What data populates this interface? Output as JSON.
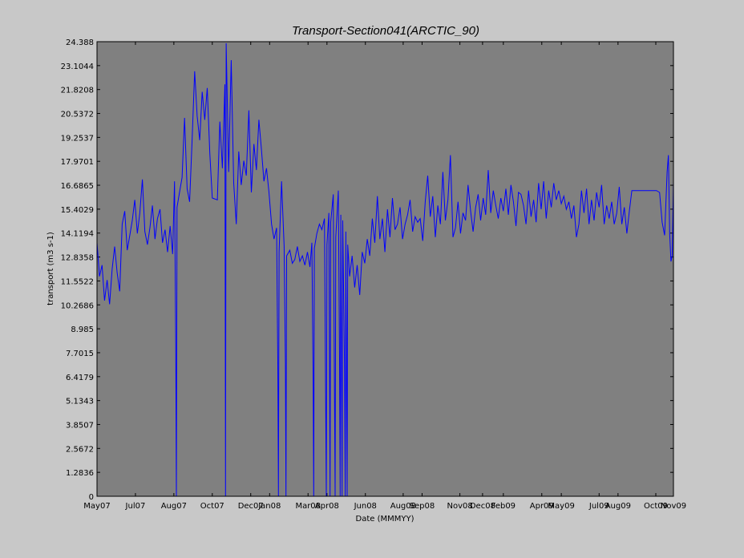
{
  "chart_data": {
    "type": "line",
    "title": "Transport-Section041(ARCTIC_90)",
    "xlabel": "Date (MMMYY)",
    "ylabel": "transport (m3 s-1)",
    "x_range": [
      "2007-05-01",
      "2009-11-01"
    ],
    "ylim": [
      0,
      24.388
    ],
    "y_ticks": [
      0,
      1.2836,
      2.5672,
      3.8507,
      5.1343,
      6.4179,
      7.7015,
      8.985,
      10.2686,
      11.5522,
      12.8358,
      14.1194,
      15.4029,
      16.6865,
      17.9701,
      19.2537,
      20.5372,
      21.8208,
      23.1044,
      24.388
    ],
    "y_tick_labels": [
      "0",
      "1.2836",
      "2.5672",
      "3.8507",
      "5.1343",
      "6.4179",
      "7.7015",
      "8.985",
      "10.2686",
      "11.5522",
      "12.8358",
      "14.1194",
      "15.4029",
      "16.6865",
      "17.9701",
      "19.2537",
      "20.5372",
      "21.8208",
      "23.1044",
      "24.388"
    ],
    "x_ticks": [
      "2007-05-01",
      "2007-07-01",
      "2007-08-31",
      "2007-10-31",
      "2007-12-31",
      "2008-03-01",
      "2008-05-01",
      "2008-07-01",
      "2008-08-31",
      "2008-10-31",
      "2008-12-31",
      "2009-03-02",
      "2009-05-02",
      "2009-07-02",
      "2009-09-01",
      "2009-11-01"
    ],
    "x_tick_labels": [
      "May07",
      "Jul07",
      "Aug07",
      "Oct07",
      "Dec07",
      "Jan08",
      "Mar08",
      "Apr08",
      "Jun08",
      "Aug08",
      "Sep08",
      "Nov08",
      "Dec08",
      "Feb09",
      "Apr09",
      "May09",
      "Jul09",
      "Aug09",
      "Oct09",
      "Nov09"
    ],
    "x_tick_dates": [
      "2007-05-01",
      "2007-07-01",
      "2007-08-31",
      "2007-10-31",
      "2007-12-31",
      "2008-01-30",
      "2008-03-31",
      "2008-04-30",
      "2008-06-30",
      "2008-08-29",
      "2008-09-28",
      "2008-11-27",
      "2009-01-02",
      "2009-02-04",
      "2009-04-06",
      "2009-05-07",
      "2009-07-06",
      "2009-08-05",
      "2009-10-04",
      "2009-11-01"
    ],
    "grid": false,
    "legend": "none",
    "colors": {
      "line": "#0000ff",
      "plot_background": "#808080",
      "figure_background": "#c8c8c8"
    },
    "series": [
      {
        "points": [
          [
            "2007-05-01",
            13.6
          ],
          [
            "2007-05-05",
            11.8
          ],
          [
            "2007-05-09",
            12.4
          ],
          [
            "2007-05-13",
            10.5
          ],
          [
            "2007-05-17",
            11.6
          ],
          [
            "2007-05-21",
            10.3
          ],
          [
            "2007-05-25",
            12.2
          ],
          [
            "2007-05-29",
            13.4
          ],
          [
            "2007-06-02",
            12.0
          ],
          [
            "2007-06-06",
            11.0
          ],
          [
            "2007-06-10",
            14.6
          ],
          [
            "2007-06-14",
            15.3
          ],
          [
            "2007-06-18",
            13.2
          ],
          [
            "2007-06-22",
            14.0
          ],
          [
            "2007-06-26",
            14.8
          ],
          [
            "2007-06-30",
            15.9
          ],
          [
            "2007-07-04",
            14.1
          ],
          [
            "2007-07-08",
            15.2
          ],
          [
            "2007-07-12",
            17.0
          ],
          [
            "2007-07-16",
            14.2
          ],
          [
            "2007-07-20",
            13.5
          ],
          [
            "2007-07-24",
            14.4
          ],
          [
            "2007-07-28",
            15.6
          ],
          [
            "2007-08-01",
            13.8
          ],
          [
            "2007-08-05",
            14.9
          ],
          [
            "2007-08-09",
            15.4
          ],
          [
            "2007-08-13",
            13.6
          ],
          [
            "2007-08-17",
            14.3
          ],
          [
            "2007-08-21",
            13.1
          ],
          [
            "2007-08-25",
            14.5
          ],
          [
            "2007-08-29",
            13.0
          ],
          [
            "2007-09-01",
            16.9
          ],
          [
            "2007-09-03",
            8.2
          ],
          [
            "2007-09-04",
            0.0
          ],
          [
            "2007-09-05",
            15.5
          ],
          [
            "2007-09-09",
            16.3
          ],
          [
            "2007-09-13",
            17.1
          ],
          [
            "2007-09-17",
            20.3
          ],
          [
            "2007-09-21",
            16.5
          ],
          [
            "2007-09-25",
            15.8
          ],
          [
            "2007-09-29",
            19.2
          ],
          [
            "2007-10-03",
            22.8
          ],
          [
            "2007-10-07",
            20.4
          ],
          [
            "2007-10-11",
            19.1
          ],
          [
            "2007-10-15",
            21.7
          ],
          [
            "2007-10-19",
            20.2
          ],
          [
            "2007-10-23",
            21.9
          ],
          [
            "2007-10-27",
            18.4
          ],
          [
            "2007-10-31",
            16.0
          ],
          [
            "2007-11-08",
            15.9
          ],
          [
            "2007-11-12",
            20.1
          ],
          [
            "2007-11-16",
            17.6
          ],
          [
            "2007-11-20",
            22.1
          ],
          [
            "2007-11-21",
            0.0
          ],
          [
            "2007-11-22",
            24.3
          ],
          [
            "2007-11-26",
            17.4
          ],
          [
            "2007-11-30",
            23.4
          ],
          [
            "2007-12-04",
            16.8
          ],
          [
            "2007-12-08",
            14.6
          ],
          [
            "2007-12-12",
            18.5
          ],
          [
            "2007-12-16",
            16.7
          ],
          [
            "2007-12-20",
            18.0
          ],
          [
            "2007-12-24",
            17.2
          ],
          [
            "2007-12-28",
            20.7
          ],
          [
            "2008-01-01",
            16.3
          ],
          [
            "2008-01-05",
            18.9
          ],
          [
            "2008-01-09",
            17.5
          ],
          [
            "2008-01-13",
            20.2
          ],
          [
            "2008-01-17",
            18.6
          ],
          [
            "2008-01-21",
            16.9
          ],
          [
            "2008-01-25",
            17.6
          ],
          [
            "2008-01-29",
            16.3
          ],
          [
            "2008-02-02",
            14.6
          ],
          [
            "2008-02-06",
            13.8
          ],
          [
            "2008-02-10",
            14.4
          ],
          [
            "2008-02-12",
            7.2
          ],
          [
            "2008-02-13",
            0.0
          ],
          [
            "2008-02-14",
            13.1
          ],
          [
            "2008-02-18",
            16.9
          ],
          [
            "2008-02-22",
            13.4
          ],
          [
            "2008-02-24",
            7.1
          ],
          [
            "2008-02-25",
            0.0
          ],
          [
            "2008-02-26",
            12.9
          ],
          [
            "2008-03-02",
            13.2
          ],
          [
            "2008-03-06",
            12.5
          ],
          [
            "2008-03-10",
            12.7
          ],
          [
            "2008-03-14",
            13.4
          ],
          [
            "2008-03-18",
            12.6
          ],
          [
            "2008-03-22",
            12.9
          ],
          [
            "2008-03-26",
            12.4
          ],
          [
            "2008-03-30",
            13.1
          ],
          [
            "2008-04-03",
            12.3
          ],
          [
            "2008-04-06",
            13.6
          ],
          [
            "2008-04-08",
            6.8
          ],
          [
            "2008-04-09",
            0.0
          ],
          [
            "2008-04-10",
            13.3
          ],
          [
            "2008-04-14",
            14.1
          ],
          [
            "2008-04-18",
            14.6
          ],
          [
            "2008-04-22",
            14.3
          ],
          [
            "2008-04-26",
            14.9
          ],
          [
            "2008-04-29",
            0.0
          ],
          [
            "2008-04-30",
            13.5
          ],
          [
            "2008-05-03",
            15.2
          ],
          [
            "2008-05-05",
            0.0
          ],
          [
            "2008-05-06",
            14.7
          ],
          [
            "2008-05-10",
            16.2
          ],
          [
            "2008-05-13",
            0.0
          ],
          [
            "2008-05-14",
            13.9
          ],
          [
            "2008-05-18",
            16.4
          ],
          [
            "2008-05-20",
            7.4
          ],
          [
            "2008-05-21",
            0.0
          ],
          [
            "2008-05-22",
            15.1
          ],
          [
            "2008-05-24",
            0.0
          ],
          [
            "2008-05-25",
            14.8
          ],
          [
            "2008-05-28",
            6.6
          ],
          [
            "2008-05-29",
            0.0
          ],
          [
            "2008-05-30",
            14.2
          ],
          [
            "2008-06-01",
            0.0
          ],
          [
            "2008-06-02",
            13.5
          ],
          [
            "2008-06-05",
            11.8
          ],
          [
            "2008-06-09",
            12.9
          ],
          [
            "2008-06-13",
            11.2
          ],
          [
            "2008-06-17",
            12.4
          ],
          [
            "2008-06-21",
            10.8
          ],
          [
            "2008-06-25",
            13.1
          ],
          [
            "2008-06-29",
            12.5
          ],
          [
            "2008-07-03",
            13.8
          ],
          [
            "2008-07-07",
            12.9
          ],
          [
            "2008-07-11",
            14.9
          ],
          [
            "2008-07-15",
            13.6
          ],
          [
            "2008-07-19",
            16.1
          ],
          [
            "2008-07-23",
            13.8
          ],
          [
            "2008-07-27",
            14.9
          ],
          [
            "2008-07-31",
            13.1
          ],
          [
            "2008-08-04",
            15.4
          ],
          [
            "2008-08-08",
            13.9
          ],
          [
            "2008-08-12",
            16.0
          ],
          [
            "2008-08-16",
            14.3
          ],
          [
            "2008-08-20",
            14.6
          ],
          [
            "2008-08-24",
            15.5
          ],
          [
            "2008-08-28",
            13.8
          ],
          [
            "2008-09-01",
            14.6
          ],
          [
            "2008-09-05",
            15.1
          ],
          [
            "2008-09-09",
            15.9
          ],
          [
            "2008-09-13",
            14.2
          ],
          [
            "2008-09-17",
            15.0
          ],
          [
            "2008-09-21",
            14.7
          ],
          [
            "2008-09-25",
            14.9
          ],
          [
            "2008-09-29",
            13.7
          ],
          [
            "2008-10-03",
            15.8
          ],
          [
            "2008-10-07",
            17.2
          ],
          [
            "2008-10-11",
            15.0
          ],
          [
            "2008-10-15",
            16.1
          ],
          [
            "2008-10-19",
            13.9
          ],
          [
            "2008-10-23",
            15.6
          ],
          [
            "2008-10-27",
            14.6
          ],
          [
            "2008-10-31",
            17.4
          ],
          [
            "2008-11-04",
            14.8
          ],
          [
            "2008-11-08",
            15.9
          ],
          [
            "2008-11-12",
            18.3
          ],
          [
            "2008-11-16",
            13.9
          ],
          [
            "2008-11-20",
            14.4
          ],
          [
            "2008-11-24",
            15.8
          ],
          [
            "2008-11-28",
            14.1
          ],
          [
            "2008-12-02",
            15.2
          ],
          [
            "2008-12-06",
            14.8
          ],
          [
            "2008-12-10",
            16.7
          ],
          [
            "2008-12-14",
            15.3
          ],
          [
            "2008-12-18",
            14.2
          ],
          [
            "2008-12-22",
            15.5
          ],
          [
            "2008-12-26",
            16.2
          ],
          [
            "2008-12-30",
            14.8
          ],
          [
            "2009-01-03",
            16.0
          ],
          [
            "2009-01-07",
            15.1
          ],
          [
            "2009-01-11",
            17.5
          ],
          [
            "2009-01-15",
            15.2
          ],
          [
            "2009-01-19",
            16.4
          ],
          [
            "2009-01-23",
            15.6
          ],
          [
            "2009-01-27",
            14.9
          ],
          [
            "2009-01-31",
            16.0
          ],
          [
            "2009-02-04",
            15.3
          ],
          [
            "2009-02-08",
            16.5
          ],
          [
            "2009-02-12",
            15.1
          ],
          [
            "2009-02-16",
            16.7
          ],
          [
            "2009-02-20",
            15.8
          ],
          [
            "2009-02-24",
            14.5
          ],
          [
            "2009-02-28",
            16.3
          ],
          [
            "2009-03-04",
            16.2
          ],
          [
            "2009-03-08",
            15.6
          ],
          [
            "2009-03-12",
            14.6
          ],
          [
            "2009-03-16",
            16.4
          ],
          [
            "2009-03-20",
            15.0
          ],
          [
            "2009-03-24",
            15.9
          ],
          [
            "2009-03-28",
            14.7
          ],
          [
            "2009-04-01",
            16.8
          ],
          [
            "2009-04-05",
            15.4
          ],
          [
            "2009-04-09",
            16.9
          ],
          [
            "2009-04-13",
            14.9
          ],
          [
            "2009-04-17",
            16.4
          ],
          [
            "2009-04-21",
            15.5
          ],
          [
            "2009-04-25",
            16.8
          ],
          [
            "2009-04-29",
            15.9
          ],
          [
            "2009-05-03",
            16.4
          ],
          [
            "2009-05-07",
            15.7
          ],
          [
            "2009-05-11",
            16.1
          ],
          [
            "2009-05-15",
            15.4
          ],
          [
            "2009-05-19",
            15.8
          ],
          [
            "2009-05-23",
            14.9
          ],
          [
            "2009-05-27",
            15.6
          ],
          [
            "2009-05-31",
            13.9
          ],
          [
            "2009-06-04",
            14.6
          ],
          [
            "2009-06-08",
            16.4
          ],
          [
            "2009-06-12",
            15.2
          ],
          [
            "2009-06-16",
            16.5
          ],
          [
            "2009-06-20",
            14.6
          ],
          [
            "2009-06-24",
            15.9
          ],
          [
            "2009-06-28",
            14.8
          ],
          [
            "2009-07-02",
            16.3
          ],
          [
            "2009-07-06",
            15.5
          ],
          [
            "2009-07-10",
            16.7
          ],
          [
            "2009-07-14",
            14.6
          ],
          [
            "2009-07-18",
            15.6
          ],
          [
            "2009-07-22",
            14.9
          ],
          [
            "2009-07-26",
            15.8
          ],
          [
            "2009-07-30",
            14.6
          ],
          [
            "2009-08-03",
            15.2
          ],
          [
            "2009-08-07",
            16.6
          ],
          [
            "2009-08-11",
            14.6
          ],
          [
            "2009-08-15",
            15.5
          ],
          [
            "2009-08-19",
            14.1
          ],
          [
            "2009-08-23",
            15.3
          ],
          [
            "2009-08-27",
            16.4
          ],
          [
            "2009-09-05",
            16.4
          ],
          [
            "2009-09-25",
            16.4
          ],
          [
            "2009-10-05",
            16.4
          ],
          [
            "2009-10-10",
            16.3
          ],
          [
            "2009-10-14",
            14.7
          ],
          [
            "2009-10-18",
            14.0
          ],
          [
            "2009-10-22",
            17.4
          ],
          [
            "2009-10-24",
            18.3
          ],
          [
            "2009-10-26",
            14.1
          ],
          [
            "2009-10-28",
            12.6
          ],
          [
            "2009-10-30",
            12.9
          ],
          [
            "2009-10-31",
            14.8
          ],
          [
            "2009-11-01",
            16.9
          ],
          [
            "2009-11-02",
            17.6
          ],
          [
            "2009-11-03",
            19.3
          ],
          [
            "2009-11-04",
            18.1
          ],
          [
            "2009-11-05",
            15.4
          ]
        ]
      }
    ]
  }
}
